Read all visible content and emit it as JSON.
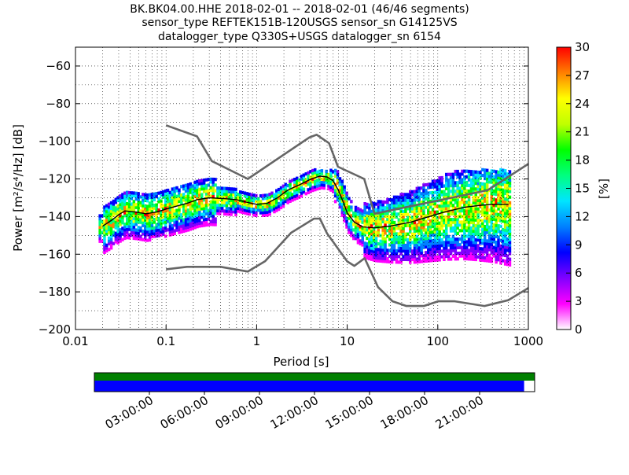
{
  "title_lines": [
    "BK.BK04.00.HHE   2018-02-01 -- 2018-02-01  (46/46 segments)",
    "sensor_type REFTEK151B-120USGS sensor_sn G14125VS",
    "datalogger_type Q330S+USGS datalogger_sn 6154"
  ],
  "chart_data": {
    "type": "heatmap",
    "xlabel": "Period [s]",
    "ylabel": "Power [m²/s⁴/Hz] [dB]",
    "xscale": "log",
    "xlim": [
      0.01,
      1000
    ],
    "ylim": [
      -200,
      -50
    ],
    "xtick_labels": [
      "0.01",
      "0.1",
      "1",
      "10",
      "100",
      "1000"
    ],
    "ytick_labels": [
      "-60",
      "-80",
      "-100",
      "-120",
      "-140",
      "-160",
      "-180",
      "-200"
    ],
    "grid": true,
    "colorbar": {
      "label": "[%]",
      "range": [
        0,
        30
      ],
      "tick_labels": [
        "0",
        "3",
        "6",
        "9",
        "12",
        "15",
        "18",
        "21",
        "24",
        "27",
        "30"
      ]
    },
    "noise_model_high": {
      "name": "",
      "x": [
        0.1,
        0.22,
        0.32,
        0.8,
        3.8,
        4.6,
        6.3,
        7.9,
        15.4,
        20,
        354.8,
        1000
      ],
      "y": [
        -91.5,
        -97.4,
        -110.5,
        -120,
        -98,
        -96.5,
        -101,
        -113.5,
        -120,
        -138.5,
        -126,
        -112
      ]
    },
    "noise_model_low": {
      "name": "",
      "x": [
        0.1,
        0.17,
        0.4,
        0.8,
        1.24,
        2.4,
        4.3,
        5,
        6,
        10,
        12,
        15.6,
        21.9,
        31.6,
        45,
        70,
        101,
        154,
        328,
        600,
        1000
      ],
      "y": [
        -168,
        -166.7,
        -166.7,
        -169.2,
        -163.7,
        -148.6,
        -141.1,
        -141.1,
        -149,
        -163.8,
        -166.2,
        -162.1,
        -177.5,
        -185,
        -187.5,
        -187.5,
        -185,
        -185,
        -187.5,
        -184.4,
        -178
      ]
    },
    "mode_curve": {
      "name": "",
      "x": [
        0.02,
        0.025,
        0.03,
        0.035,
        0.045,
        0.06,
        0.08,
        0.1,
        0.13,
        0.17,
        0.22,
        0.3,
        0.45,
        0.6,
        0.8,
        1,
        1.3,
        1.7,
        2.2,
        3,
        4,
        5,
        6,
        7,
        8,
        9,
        10,
        12,
        15,
        20,
        30,
        50,
        80,
        120,
        200,
        300,
        400,
        600
      ],
      "y": [
        -145,
        -142,
        -139,
        -137,
        -137.5,
        -138.5,
        -137.5,
        -136,
        -134.5,
        -133,
        -131,
        -130,
        -130.5,
        -131,
        -132.5,
        -133.5,
        -133,
        -130,
        -126,
        -123,
        -120,
        -118.5,
        -119,
        -121,
        -126,
        -132,
        -138,
        -143,
        -145.5,
        -146,
        -145,
        -143,
        -140,
        -137.5,
        -135,
        -134,
        -133.5,
        -133.5
      ]
    },
    "timeline": {
      "tick_labels": [
        "03:00:00",
        "06:00:00",
        "09:00:00",
        "12:00:00",
        "15:00:00",
        "18:00:00",
        "21:00:00"
      ],
      "tick_hours": [
        3,
        6,
        9,
        12,
        15,
        18,
        21
      ],
      "range_hours": [
        0,
        24
      ],
      "data_fraction": 0.976,
      "top_bar_color": "#008000",
      "bottom_bar_color": "#0000ff"
    }
  },
  "colors": {
    "noise_model": "#666666",
    "mode": "#000000",
    "colormap": [
      "#ffffff",
      "#ff00ff",
      "#8000ff",
      "#0000ff",
      "#0080ff",
      "#00e5ff",
      "#00ff80",
      "#00ff00",
      "#c0ff00",
      "#ffff00",
      "#ff8000",
      "#ff0000"
    ]
  }
}
